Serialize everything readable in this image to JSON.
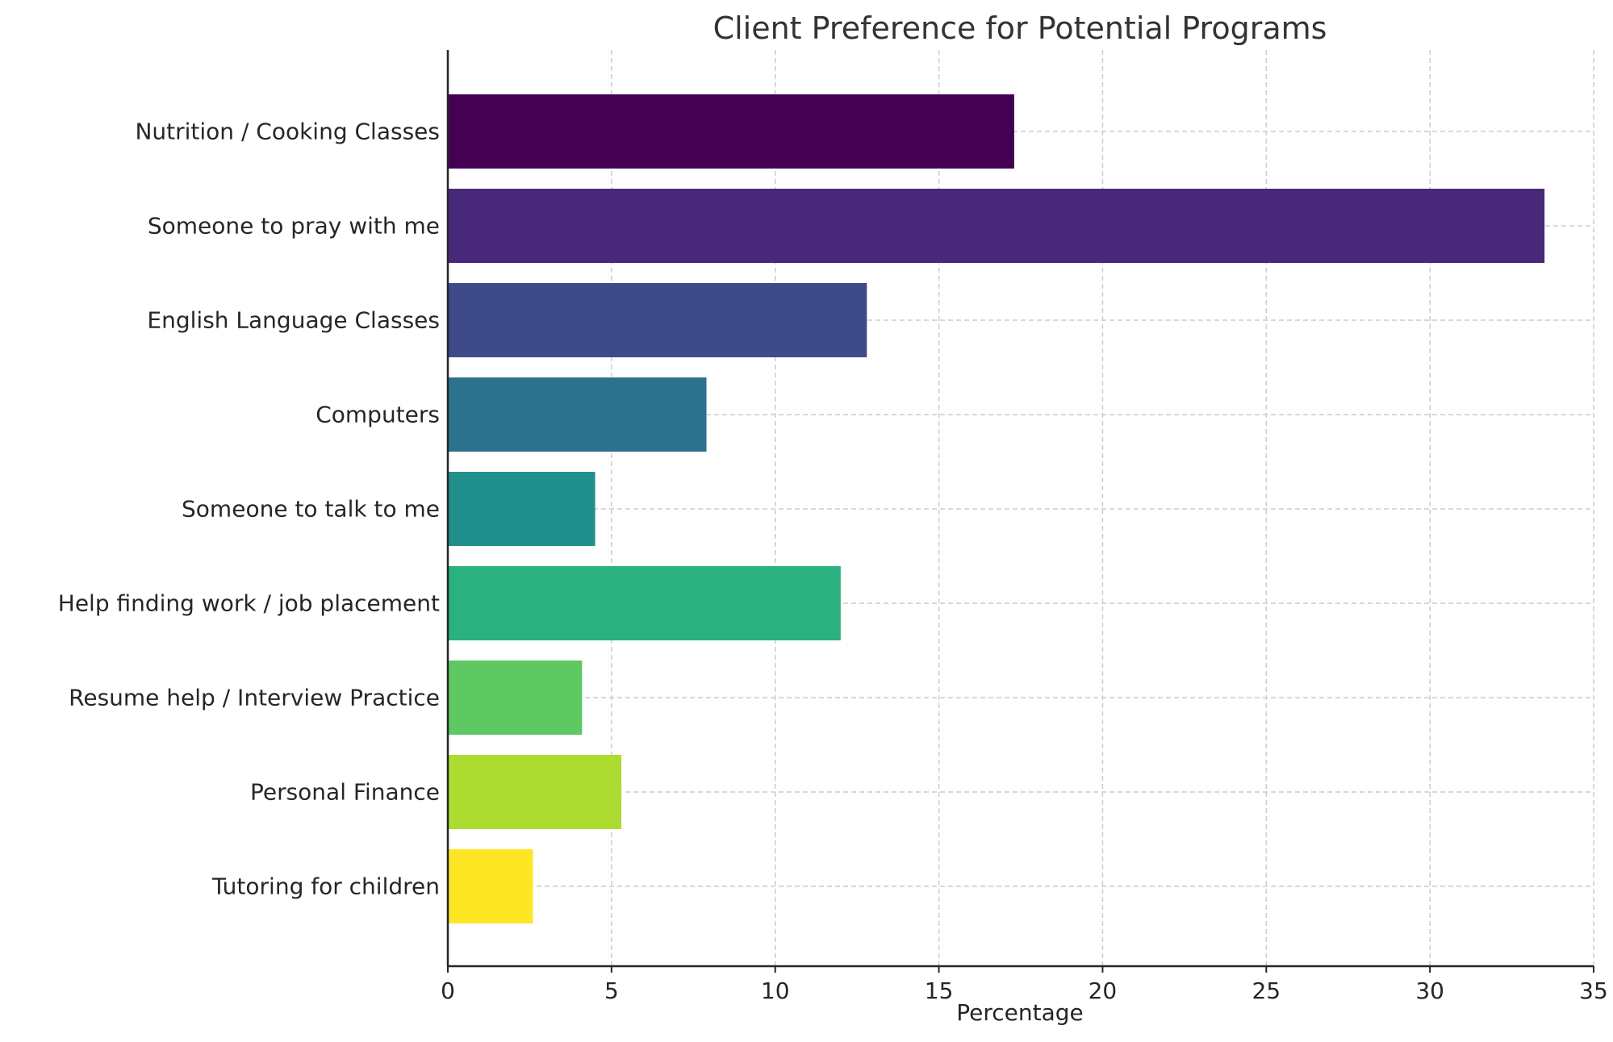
{
  "chart_data": {
    "type": "bar",
    "orientation": "horizontal",
    "title": "Client Preference for Potential Programs",
    "xlabel": "Percentage",
    "ylabel": "",
    "xlim": [
      0,
      35
    ],
    "xticks": [
      0,
      5,
      10,
      15,
      20,
      25,
      30,
      35
    ],
    "grid": true,
    "categories": [
      "Nutrition / Cooking Classes",
      "Someone to pray with me",
      "English Language Classes",
      "Computers",
      "Someone to talk to me",
      "Help finding work / job placement",
      "Resume help / Interview Practice",
      "Personal Finance",
      "Tutoring for children"
    ],
    "values": [
      17.3,
      33.5,
      12.8,
      7.9,
      4.5,
      12.0,
      4.1,
      5.3,
      2.6
    ],
    "colors": [
      "#440154",
      "#482878",
      "#3e4a89",
      "#2c718e",
      "#21908d",
      "#2bb07f",
      "#5ec962",
      "#addc30",
      "#fde725"
    ]
  }
}
